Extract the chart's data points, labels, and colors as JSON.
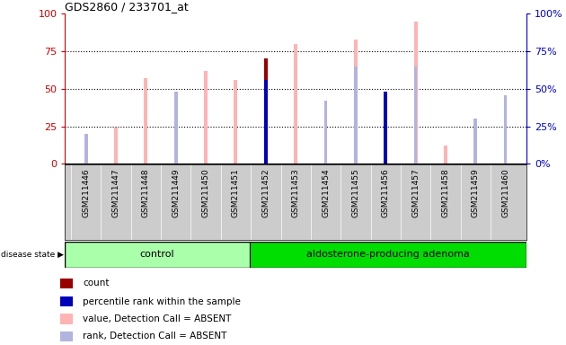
{
  "title": "GDS2860 / 233701_at",
  "samples": [
    "GSM211446",
    "GSM211447",
    "GSM211448",
    "GSM211449",
    "GSM211450",
    "GSM211451",
    "GSM211452",
    "GSM211453",
    "GSM211454",
    "GSM211455",
    "GSM211456",
    "GSM211457",
    "GSM211458",
    "GSM211459",
    "GSM211460"
  ],
  "group_labels": [
    "control",
    "aldosterone-producing adenoma"
  ],
  "n_control": 6,
  "value_absent": [
    8,
    24,
    57,
    30,
    62,
    56,
    null,
    80,
    null,
    83,
    null,
    95,
    12,
    null,
    null
  ],
  "rank_absent": [
    20,
    null,
    null,
    48,
    null,
    null,
    56,
    null,
    42,
    65,
    null,
    65,
    null,
    30,
    46
  ],
  "count": [
    null,
    null,
    null,
    null,
    null,
    null,
    70,
    null,
    null,
    null,
    35,
    null,
    null,
    null,
    null
  ],
  "percentile_rank": [
    null,
    null,
    null,
    null,
    null,
    null,
    56,
    null,
    null,
    null,
    48,
    null,
    null,
    null,
    null
  ],
  "color_value_absent": "#ffb3b3",
  "color_rank_absent": "#b3b3e0",
  "color_count": "#990000",
  "color_percentile": "#0000bb",
  "left_axis_color": "#cc0000",
  "right_axis_color": "#0000cc",
  "group_control_color": "#aaffaa",
  "group_adenoma_color": "#00dd00",
  "xtick_bg_color": "#cccccc",
  "yticks": [
    0,
    25,
    50,
    75,
    100
  ],
  "disease_state_label": "disease state",
  "bar_width": 0.12,
  "marker_size": 0.12
}
